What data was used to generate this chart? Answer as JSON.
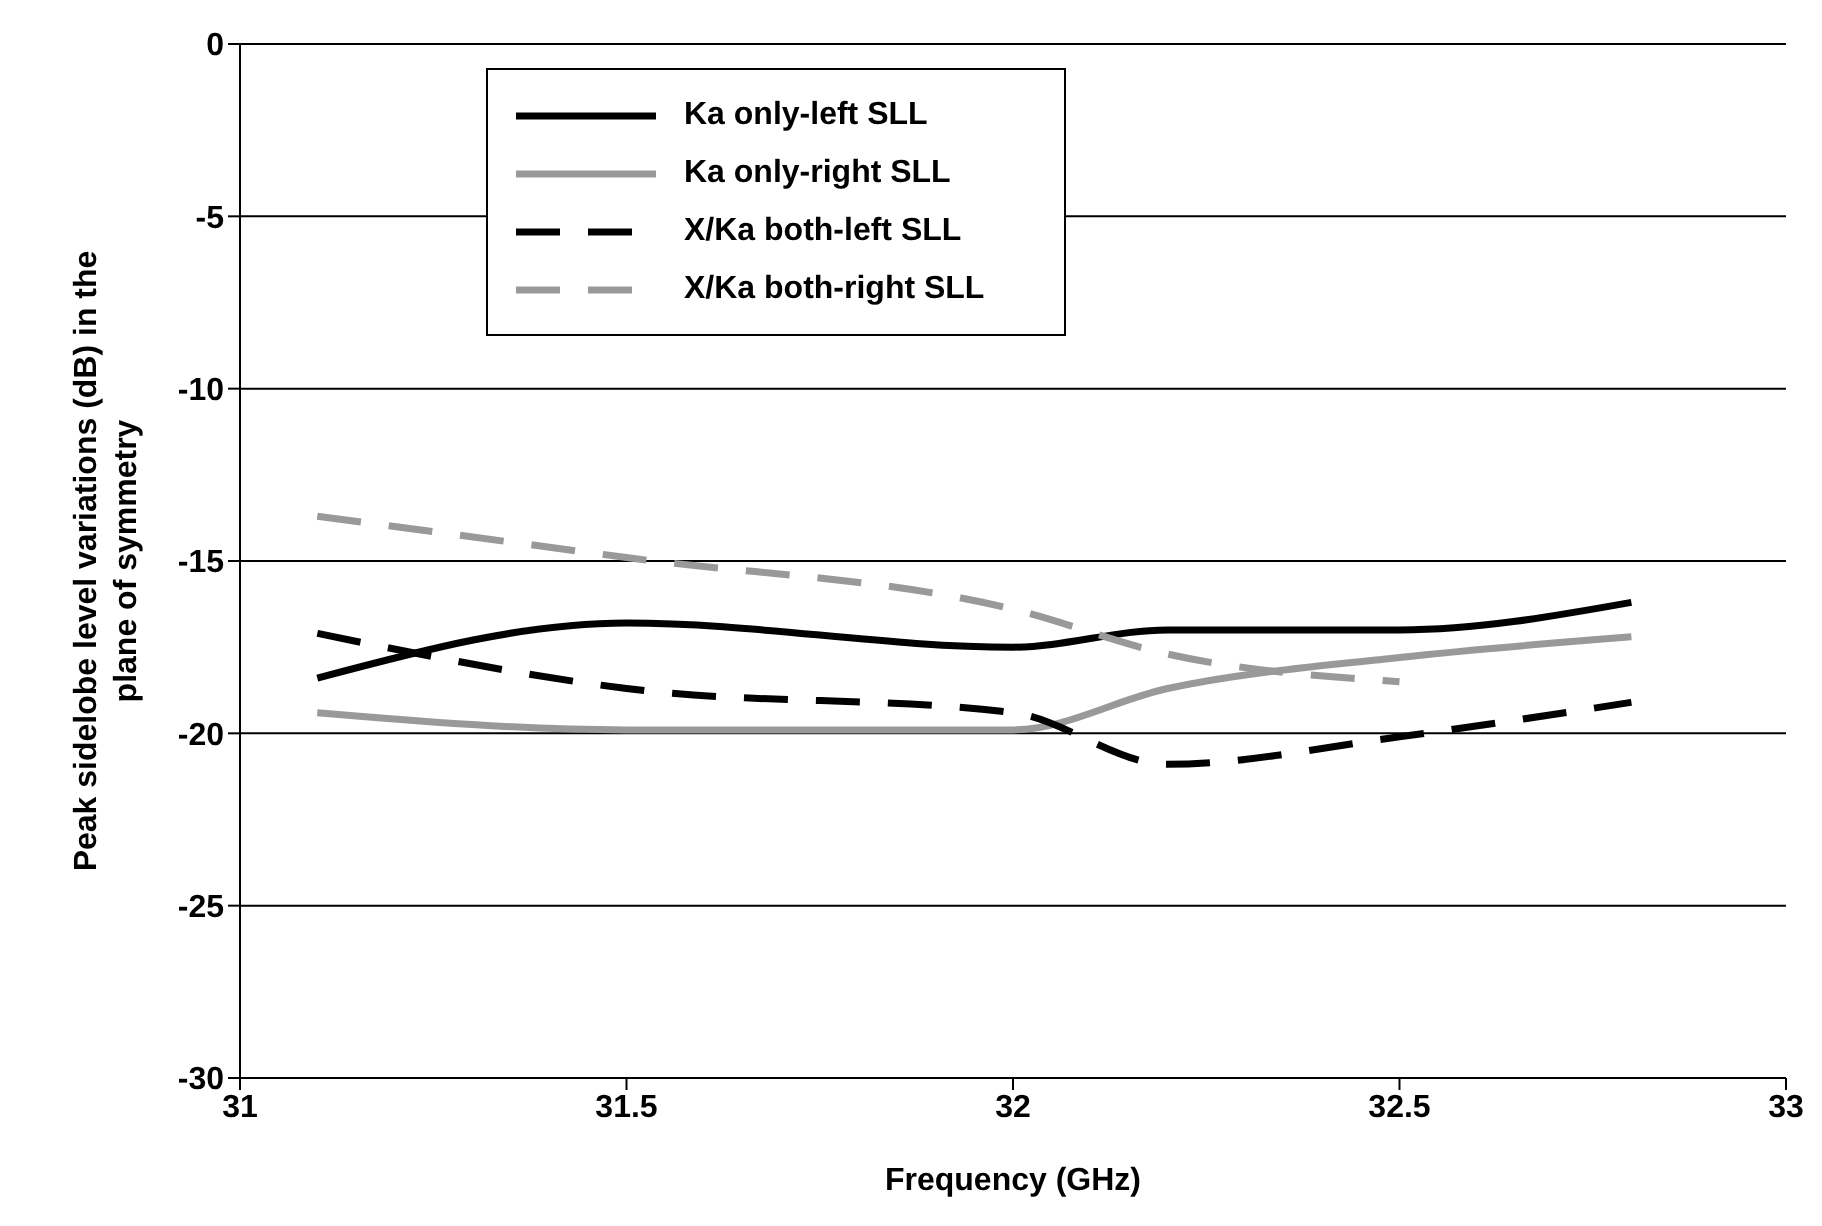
{
  "chart_data": {
    "type": "line",
    "xlabel": "Frequency (GHz)",
    "ylabel": "Peak sidelobe level variations (dB) in the plane of symmetry",
    "xlim": [
      31,
      33
    ],
    "xticks": [
      31,
      31.5,
      32,
      32.5,
      33
    ],
    "ylim": [
      -30,
      0
    ],
    "yticks": [
      -30,
      -25,
      -20,
      -15,
      -10,
      -5,
      0
    ],
    "grid": "y",
    "legend": "top",
    "marker": "none",
    "x": [
      31.1,
      31.5,
      32,
      32.2,
      32.5,
      32.8
    ],
    "series": [
      {
        "name": "Ka only-left SLL",
        "color": "#000000",
        "line_style": "solid",
        "values": [
          -18.4,
          -16.8,
          -17.5,
          -17,
          -17,
          -16.2
        ]
      },
      {
        "name": "Ka only-right SLL",
        "color": "#999999",
        "line_style": "solid",
        "values": [
          -19.4,
          -19.9,
          -19.9,
          -18.7,
          -17.8,
          -17.2
        ]
      },
      {
        "name": "X/Ka both-left SLL",
        "color": "#000000",
        "line_style": "dashed",
        "values": [
          -17.1,
          -18.7,
          -19.4,
          -20.9,
          -20.1,
          -19.1
        ]
      },
      {
        "name": "X/Ka both-right SLL",
        "color": "#999999",
        "line_style": "dashed",
        "values": [
          -13.7,
          -14.9,
          -16.4,
          -17.7,
          -18.5,
          null
        ]
      }
    ]
  }
}
